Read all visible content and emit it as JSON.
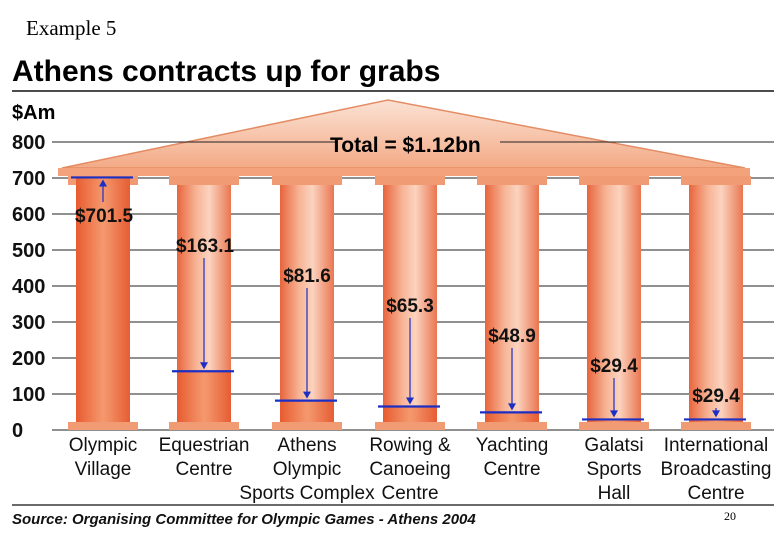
{
  "slide": {
    "label": "Example 5",
    "number": "20"
  },
  "chart_data": {
    "type": "bar",
    "title": "Athens contracts up for grabs",
    "ylabel": "$Am",
    "total_label": "Total = $1.12bn",
    "ylim": [
      0,
      800
    ],
    "yticks": [
      0,
      100,
      200,
      300,
      400,
      500,
      600,
      700,
      800
    ],
    "categories": [
      [
        "Olympic",
        "Village"
      ],
      [
        "Equestrian",
        "Centre"
      ],
      [
        "Athens",
        "Olympic",
        "Sports Complex"
      ],
      [
        "Rowing &",
        "Canoeing",
        "Centre"
      ],
      [
        "Yachting",
        "Centre"
      ],
      [
        "Galatsi",
        "Sports",
        "Hall"
      ],
      [
        "International",
        "Broadcasting",
        "Centre"
      ]
    ],
    "values": [
      701.5,
      163.1,
      81.6,
      65.3,
      48.9,
      29.4,
      29.4
    ],
    "value_labels": [
      "$701.5",
      "$163.1",
      "$81.6",
      "$65.3",
      "$48.9",
      "$29.4",
      "$29.4"
    ],
    "source": "Source: Organising Committee for Olympic Games - Athens 2004"
  },
  "colors": {
    "column": "#f4a584",
    "column_dark": "#e8704a",
    "column_light": "#fcd6c2",
    "roof": "#f7c0a4",
    "marker": "#1c2fc4",
    "grid": "#222222"
  }
}
